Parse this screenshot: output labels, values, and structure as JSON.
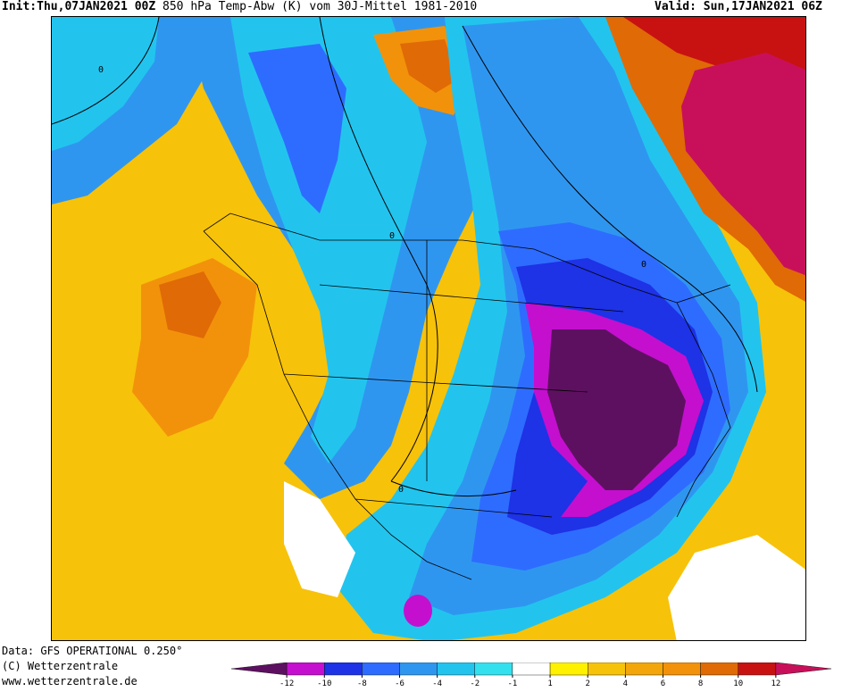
{
  "header": {
    "init_label": "Init:",
    "init_time": "Thu,07JAN2021 00Z",
    "product": "850 hPa Temp-Abw (K) vom 30J-Mittel 1981-2010",
    "valid_label": "Valid:",
    "valid_time": "Sun,17JAN2021 06Z"
  },
  "footer": {
    "data_source": "Data: GFS OPERATIONAL 0.250°",
    "copyright": "(C) Wetterzentrale",
    "website": "www.wetterzentrale.de"
  },
  "map": {
    "region": "North America",
    "contour_label": "0",
    "colors": {
      "strong_cold": "#5e1060",
      "cold_purple": "#c40fcf",
      "deep_blue": "#1e32e6",
      "blue": "#2e6cff",
      "mid_blue": "#2f96f0",
      "light_blue": "#22c4ee",
      "cyan": "#33e0ee",
      "neutral": "#ffffff",
      "warm_yellow": "#f7c20a",
      "orange": "#f2920a",
      "dark_orange": "#e06a06",
      "red": "#c81212",
      "hot_magenta": "#c8105a"
    }
  },
  "legend": {
    "bins": [
      "#5e1060",
      "#c40fcf",
      "#1e32e6",
      "#2e6cff",
      "#2f96f0",
      "#22c4ee",
      "#33e0ee",
      "#ffffff",
      "#fff100",
      "#f7c20a",
      "#f2a60a",
      "#f2920a",
      "#e06a06",
      "#c81212",
      "#c8105a"
    ],
    "tick_labels": [
      "-12",
      "-10",
      "-8",
      "-6",
      "-4",
      "-2",
      "-1",
      "1",
      "2",
      "4",
      "6",
      "8",
      "10",
      "12"
    ]
  }
}
